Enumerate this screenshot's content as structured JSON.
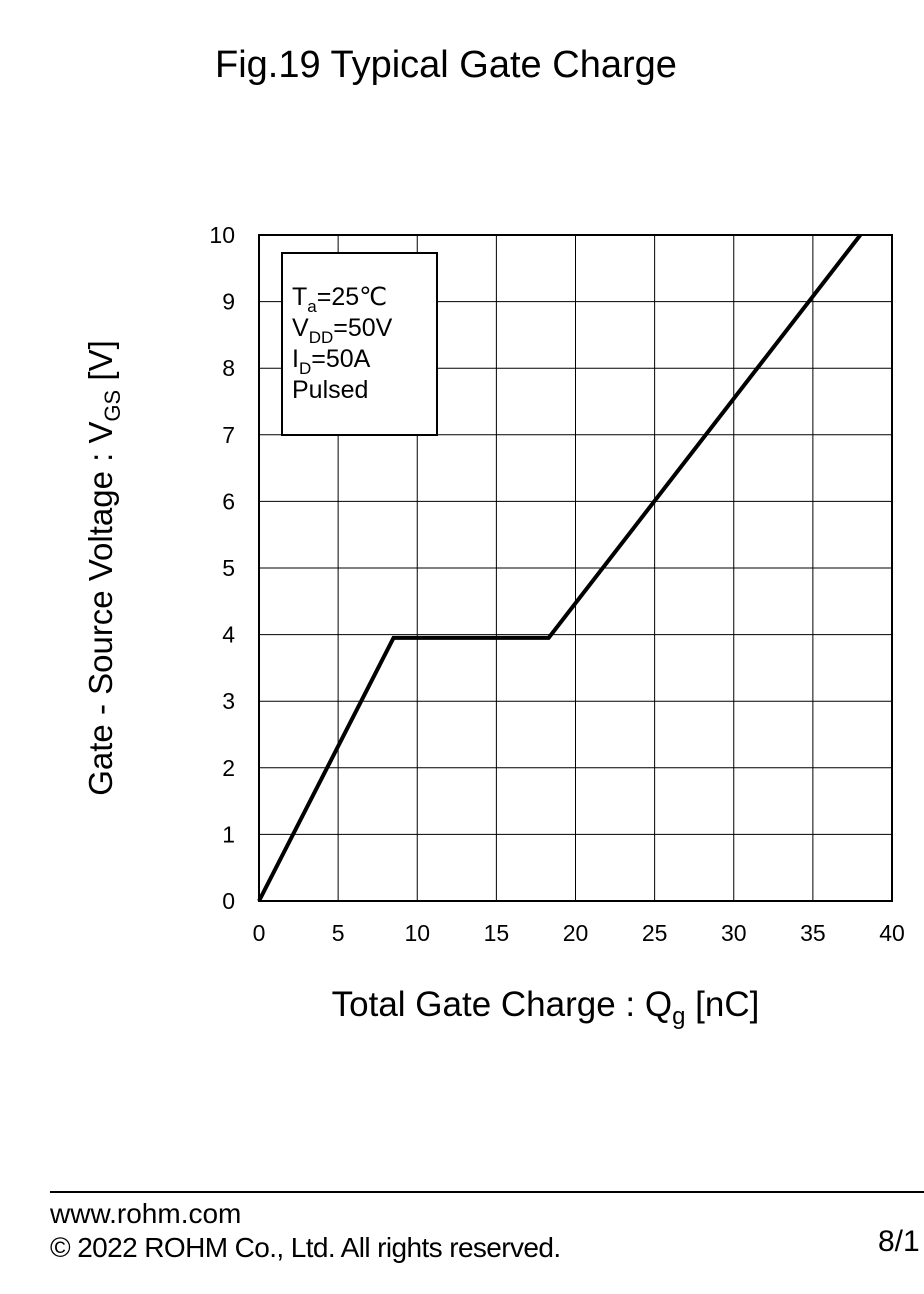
{
  "chart_data": {
    "type": "line",
    "title": "Fig.19 Typical Gate Charge",
    "xlabel": {
      "main": "Total Gate Charge : Q",
      "sub": "g",
      "unit": " [nC]"
    },
    "ylabel": {
      "main": "Gate - Source Voltage : V",
      "sub": "GS",
      "unit": " [V]"
    },
    "xlim": [
      0,
      40
    ],
    "ylim": [
      0,
      10
    ],
    "xticks": [
      0,
      5,
      10,
      15,
      20,
      25,
      30,
      35,
      40
    ],
    "yticks": [
      0,
      1,
      2,
      3,
      4,
      5,
      6,
      7,
      8,
      9,
      10
    ],
    "grid": true,
    "series": [
      {
        "points": [
          [
            0,
            0
          ],
          [
            8.5,
            3.95
          ],
          [
            18.3,
            3.95
          ],
          [
            38,
            10
          ]
        ]
      }
    ],
    "conditions": [
      {
        "main": "T",
        "sub": "a",
        "rest": "=25℃"
      },
      {
        "main": "V",
        "sub": "DD",
        "rest": "=50V"
      },
      {
        "main": "I",
        "sub": "D",
        "rest": "=50A"
      },
      {
        "main": "Pulsed",
        "sub": "",
        "rest": ""
      }
    ],
    "conditions_placement": "top-left"
  },
  "footer": {
    "site": "www.rohm.com",
    "copyright": "© 2022 ROHM Co., Ltd. All rights reserved.",
    "page": "8/1"
  }
}
